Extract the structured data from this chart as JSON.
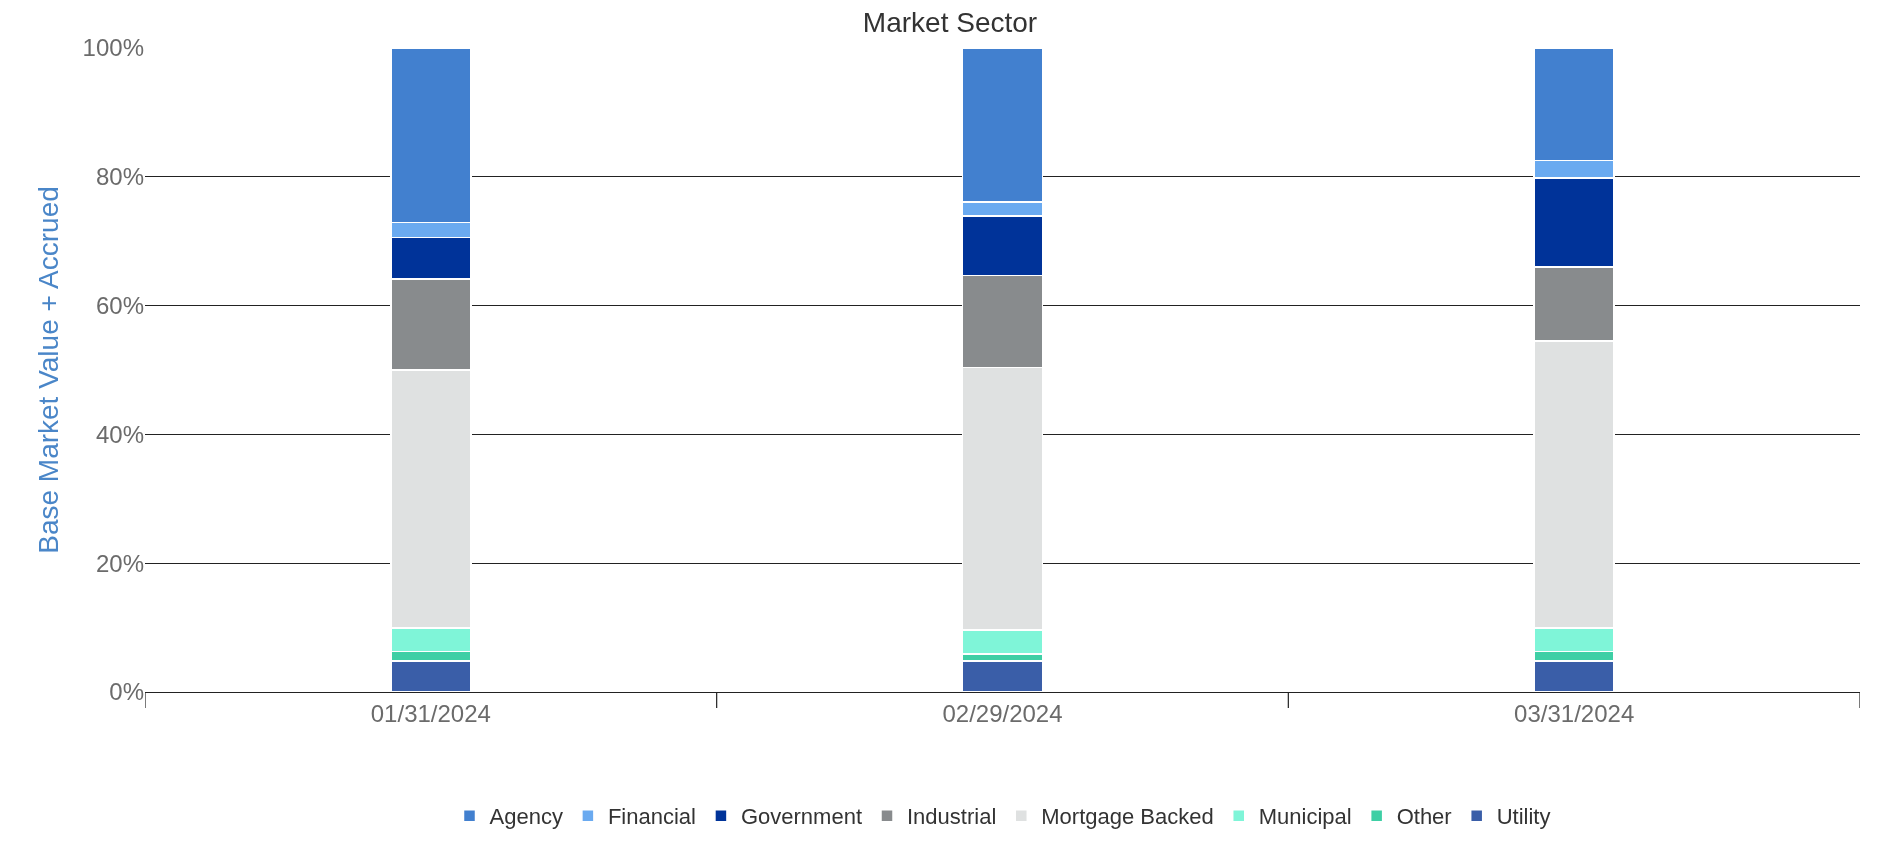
{
  "chart_data": {
    "type": "bar",
    "title": "Market Sector",
    "ylabel": "Base Market Value + Accrued",
    "categories": [
      "01/31/2024",
      "02/29/2024",
      "03/31/2024"
    ],
    "stacked": true,
    "series": [
      {
        "name": "Utility",
        "color": "#3a5ea8",
        "values": [
          4.8,
          4.8,
          4.8
        ]
      },
      {
        "name": "Other",
        "color": "#3ecfa5",
        "values": [
          1.5,
          1.1,
          1.5
        ]
      },
      {
        "name": "Municipal",
        "color": "#7ff5d8",
        "values": [
          3.6,
          3.7,
          3.6
        ]
      },
      {
        "name": "Mortgage Backed",
        "color": "#dfe1e1",
        "values": [
          40.1,
          40.8,
          44.6
        ]
      },
      {
        "name": "Industrial",
        "color": "#888b8d",
        "values": [
          14.1,
          14.3,
          11.5
        ]
      },
      {
        "name": "Government",
        "color": "#003399",
        "values": [
          6.5,
          9.2,
          13.8
        ]
      },
      {
        "name": "Financial",
        "color": "#6aaaf0",
        "values": [
          2.3,
          2.2,
          2.7
        ]
      },
      {
        "name": "Agency",
        "color": "#4280cf",
        "values": [
          27.1,
          23.9,
          17.5
        ]
      }
    ],
    "ylim": [
      0,
      100
    ],
    "yticks": [
      {
        "value": 0,
        "label": "0%"
      },
      {
        "value": 20,
        "label": "20%"
      },
      {
        "value": 40,
        "label": "40%"
      },
      {
        "value": 60,
        "label": "60%"
      },
      {
        "value": 80,
        "label": "80%"
      },
      {
        "value": 100,
        "label": "100%"
      }
    ],
    "grid": "y",
    "legend": "bottom"
  }
}
